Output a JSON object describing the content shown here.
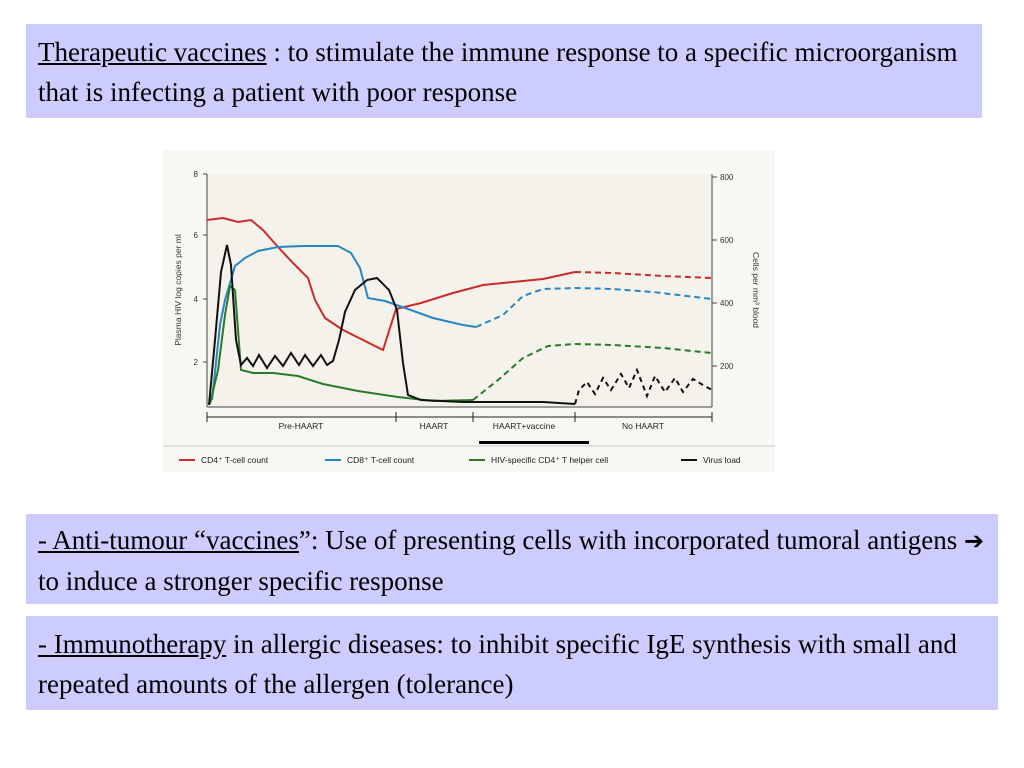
{
  "box1": {
    "title": "Therapeutic vaccines",
    "text": " : to stimulate the immune response to a specific microorganism that is infecting a patient with poor response"
  },
  "chart_data": {
    "type": "line",
    "ylabel_left": "Plasma HIV log copies per ml",
    "ylabel_right": "Cells per mm³ blood",
    "left_ticks": [
      "2",
      "4",
      "6",
      "8"
    ],
    "right_ticks": [
      "200",
      "400",
      "600",
      "800"
    ],
    "phases": [
      "Pre-HAART",
      "HAART",
      "HAART+vaccine",
      "No HAART"
    ],
    "legend": [
      {
        "label": "CD4⁺ T-cell count",
        "color": "#cc2a2a"
      },
      {
        "label": "CD8⁺ T-cell count",
        "color": "#2a86c2"
      },
      {
        "label": "HIV-specific CD4⁺ T helper cell",
        "color": "#2a7a2a"
      },
      {
        "label": "Virus load",
        "color": "#111111"
      }
    ]
  },
  "box2": {
    "title": "- Anti-tumour “vaccines",
    "text": "”: Use of presenting cells with incorporated tumoral antigens ",
    "arrow": "➔",
    "text2": " to induce a stronger specific response"
  },
  "box3": {
    "title": "- Immunotherapy",
    "text": " in allergic diseases: to inhibit specific IgE synthesis with small and repeated amounts of the allergen (tolerance)"
  }
}
